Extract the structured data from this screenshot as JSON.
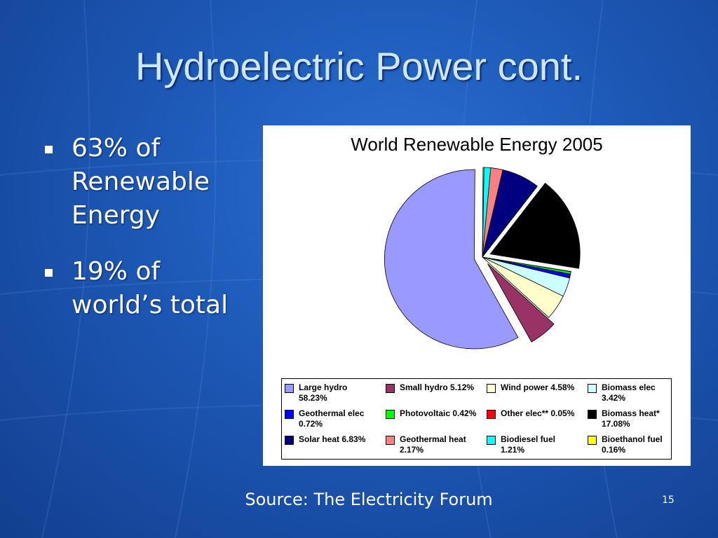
{
  "slide": {
    "title": "Hydroelectric Power cont.",
    "bullets": [
      "63% of Renewable Energy",
      "19% of world’s total"
    ],
    "source": "Source: The Electricity Forum",
    "page_number": "15"
  },
  "chart_data": {
    "type": "pie",
    "title": "World Renewable Energy 2005",
    "start_offset_deg": 1,
    "legend_placement": "bottom",
    "slices": [
      {
        "name": "Biodiesel fuel",
        "value": 1.21,
        "color": "#00ffff",
        "exploded": false
      },
      {
        "name": "Geothermal heat",
        "value": 2.17,
        "color": "#ff8080",
        "exploded": false
      },
      {
        "name": "Solar heat",
        "value": 6.83,
        "color": "#000080",
        "exploded": false
      },
      {
        "name": "Biomass heat*",
        "value": 17.08,
        "color": "#000000",
        "exploded": true
      },
      {
        "name": "Other elec**",
        "value": 0.05,
        "color": "#ff0000",
        "exploded": false
      },
      {
        "name": "Photovoltaic",
        "value": 0.42,
        "color": "#00ff00",
        "exploded": false
      },
      {
        "name": "Geothermal elec",
        "value": 0.72,
        "color": "#0000ff",
        "exploded": false
      },
      {
        "name": "Biomass elec",
        "value": 3.42,
        "color": "#ccffff",
        "exploded": false
      },
      {
        "name": "Wind power",
        "value": 4.58,
        "color": "#ffffcc",
        "exploded": false
      },
      {
        "name": "Small hydro",
        "value": 5.12,
        "color": "#993366",
        "exploded": true
      },
      {
        "name": "Large hydro",
        "value": 58.23,
        "color": "#9999ff",
        "exploded": true
      },
      {
        "name": "Bioethanol fuel",
        "value": 0.16,
        "color": "#ffff00",
        "exploded": false
      }
    ],
    "legend": [
      {
        "line1": "Large hydro",
        "line2": "58.23%",
        "color": "#9999ff"
      },
      {
        "line1": "Small hydro 5.12%",
        "line2": "",
        "color": "#993366"
      },
      {
        "line1": "Wind power 4.58%",
        "line2": "",
        "color": "#ffffcc"
      },
      {
        "line1": "Biomass elec",
        "line2": "3.42%",
        "color": "#ccffff"
      },
      {
        "line1": "Geothermal elec",
        "line2": "0.72%",
        "color": "#0000ff"
      },
      {
        "line1": "Photovoltaic 0.42%",
        "line2": "",
        "color": "#00ff00"
      },
      {
        "line1": "Other elec** 0.05%",
        "line2": "",
        "color": "#ff0000"
      },
      {
        "line1": "Biomass heat*",
        "line2": "17.08%",
        "color": "#000000"
      },
      {
        "line1": "Solar heat 6.83%",
        "line2": "",
        "color": "#000080"
      },
      {
        "line1": "Geothermal heat",
        "line2": "2.17%",
        "color": "#ff8080"
      },
      {
        "line1": "Biodiesel fuel",
        "line2": "1.21%",
        "color": "#00ffff"
      },
      {
        "line1": "Bioethanol fuel",
        "line2": "0.16%",
        "color": "#ffff00"
      }
    ]
  }
}
